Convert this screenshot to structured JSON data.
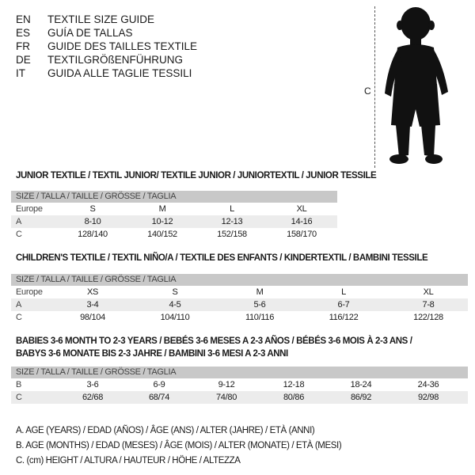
{
  "languages": [
    {
      "code": "EN",
      "title": "TEXTILE SIZE GUIDE"
    },
    {
      "code": "ES",
      "title": "GUÍA DE TALLAS"
    },
    {
      "code": "FR",
      "title": "GUIDE DES TAILLES TEXTILE"
    },
    {
      "code": "DE",
      "title": "TEXTILGRÖßENFÜHRUNG"
    },
    {
      "code": "IT",
      "title": "GUIDA ALLE TAGLIE TESSILI"
    }
  ],
  "figure": {
    "measure_label": "C",
    "icon": "child-silhouette"
  },
  "size_header": "SIZE / TALLA / TAILLE / GRÖSSE / TAGLIA",
  "junior": {
    "title": "JUNIOR TEXTILE / TEXTIL JUNIOR/ TEXTILE JUNIOR / JUNIORTEXTIL / JUNIOR TESSILE",
    "rows": [
      {
        "label": "Europe",
        "values": [
          "S",
          "M",
          "L",
          "XL"
        ]
      },
      {
        "label": "A",
        "values": [
          "8-10",
          "10-12",
          "12-13",
          "14-16"
        ]
      },
      {
        "label": "C",
        "values": [
          "128/140",
          "140/152",
          "152/158",
          "158/170"
        ]
      }
    ]
  },
  "children": {
    "title": "CHILDREN'S TEXTILE / TEXTIL NIÑO/A / TEXTILE DES ENFANTS / KINDERTEXTIL / BAMBINI TESSILE",
    "rows": [
      {
        "label": "Europe",
        "values": [
          "XS",
          "S",
          "M",
          "L",
          "XL"
        ]
      },
      {
        "label": "A",
        "values": [
          "3-4",
          "4-5",
          "5-6",
          "6-7",
          "7-8"
        ]
      },
      {
        "label": "C",
        "values": [
          "98/104",
          "104/110",
          "110/116",
          "116/122",
          "122/128"
        ]
      }
    ]
  },
  "babies": {
    "title_line1": "BABIES 3-6 MONTH TO 2-3 YEARS / BEBÉS 3-6 MESES A 2-3 AÑOS / BÉBÉS 3-6 MOIS À 2-3 ANS /",
    "title_line2": "BABYS 3-6 MONATE BIS 2-3 JAHRE / BAMBINI 3-6 MESI A 2-3 ANNI",
    "rows": [
      {
        "label": "B",
        "values": [
          "3-6",
          "6-9",
          "9-12",
          "12-18",
          "18-24",
          "24-36"
        ]
      },
      {
        "label": "C",
        "values": [
          "62/68",
          "68/74",
          "74/80",
          "80/86",
          "86/92",
          "92/98"
        ]
      }
    ]
  },
  "legend": [
    "A. AGE (YEARS) / EDAD (AÑOS) / ÂGE (ANS) / ALTER (JAHRE) / ETÀ (ANNI)",
    "B. AGE (MONTHS) / EDAD (MESES) / ÂGE (MOIS) / ALTER (MONATE) / ETÀ (MESI)",
    "C. (cm) HEIGHT / ALTURA / HAUTEUR / HÖHE / ALTEZZA"
  ]
}
